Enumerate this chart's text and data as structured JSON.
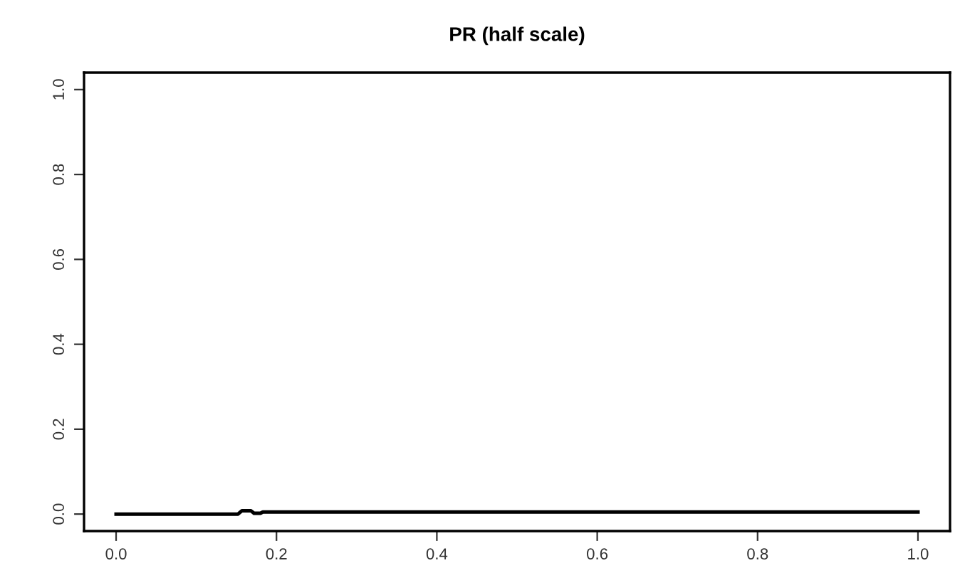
{
  "chart_data": {
    "type": "line",
    "title": "PR (half scale)",
    "x": [
      0,
      0.152,
      0.157,
      0.168,
      0.172,
      0.18,
      0.183,
      1.0
    ],
    "series": [
      {
        "color": "#000000",
        "values": [
          0,
          0,
          0.008,
          0.008,
          0.002,
          0.002,
          0.005,
          0.005
        ]
      }
    ],
    "xlim": [
      -0.04,
      1.04
    ],
    "ylim": [
      -0.04,
      1.04
    ],
    "xticks": [
      {
        "value": 0,
        "label": "0.0"
      },
      0.2,
      0.4,
      0.6,
      0.8,
      {
        "value": 1,
        "label": "1.0"
      }
    ],
    "yticks": [
      {
        "value": 0,
        "label": "0.0"
      },
      0.2,
      0.4,
      0.6,
      0.8,
      {
        "value": 1,
        "label": "1.0"
      }
    ],
    "grid": false,
    "legend": false,
    "marker": "none",
    "line_style": "solid"
  }
}
